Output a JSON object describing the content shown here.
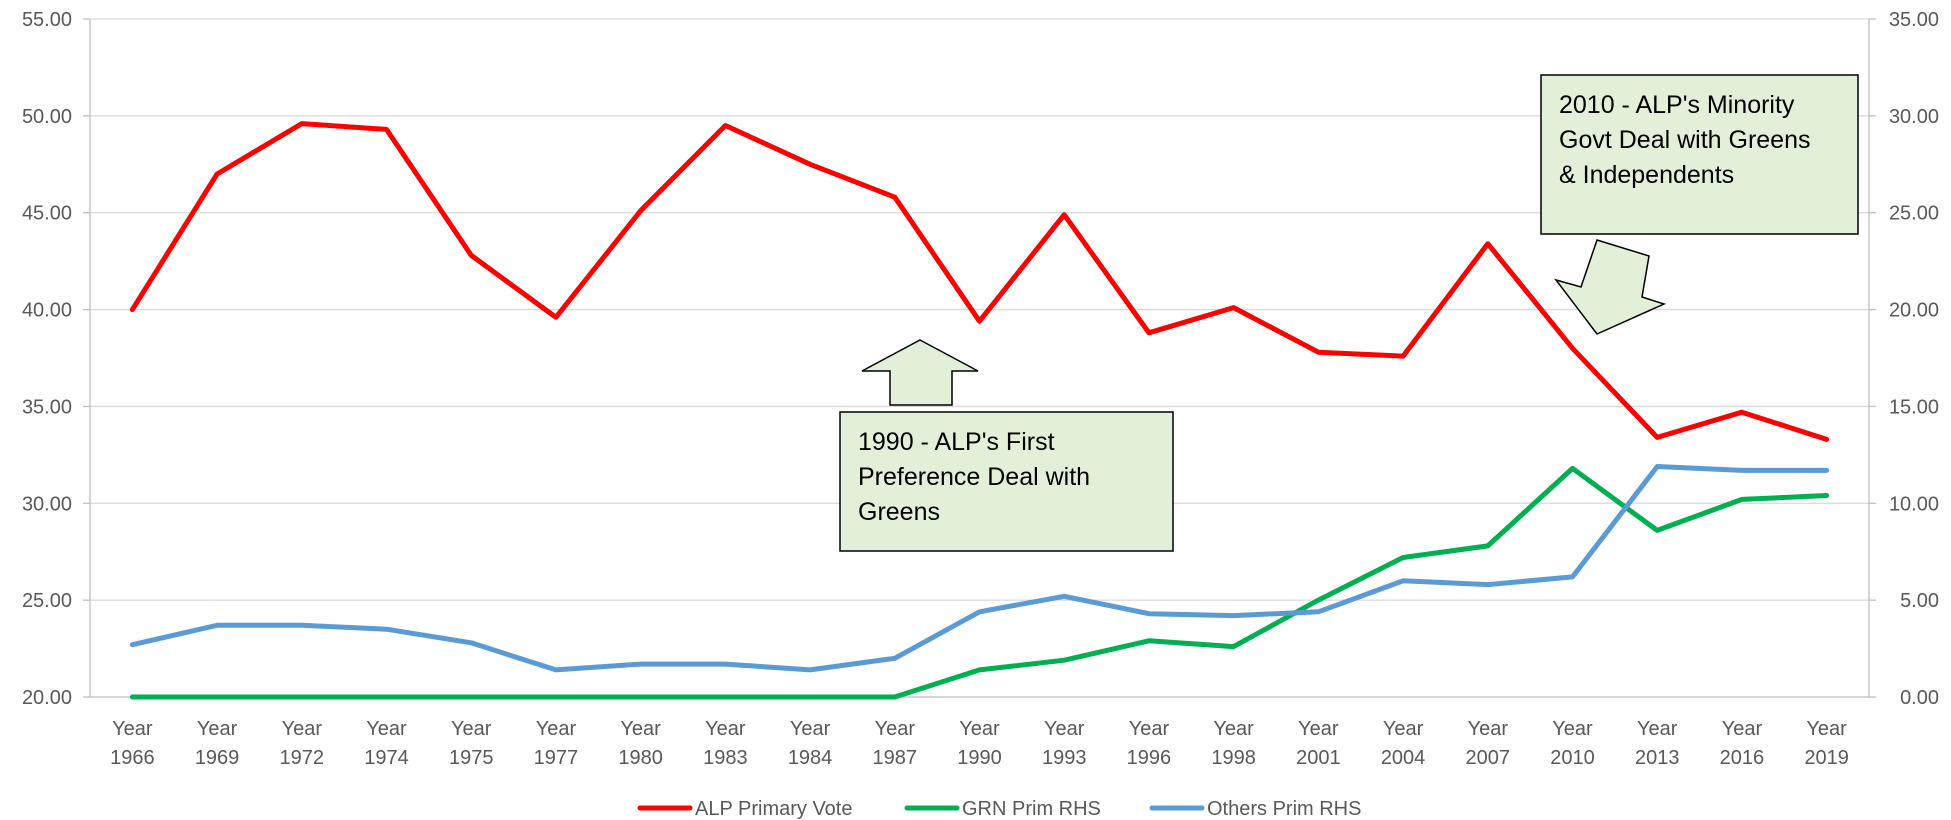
{
  "chart_data": {
    "type": "line",
    "categories": [
      [
        "Year",
        "1966"
      ],
      [
        "Year",
        "1969"
      ],
      [
        "Year",
        "1972"
      ],
      [
        "Year",
        "1974"
      ],
      [
        "Year",
        "1975"
      ],
      [
        "Year",
        "1977"
      ],
      [
        "Year",
        "1980"
      ],
      [
        "Year",
        "1983"
      ],
      [
        "Year",
        "1984"
      ],
      [
        "Year",
        "1987"
      ],
      [
        "Year",
        "1990"
      ],
      [
        "Year",
        "1993"
      ],
      [
        "Year",
        "1996"
      ],
      [
        "Year",
        "1998"
      ],
      [
        "Year",
        "2001"
      ],
      [
        "Year",
        "2004"
      ],
      [
        "Year",
        "2007"
      ],
      [
        "Year",
        "2010"
      ],
      [
        "Year",
        "2013"
      ],
      [
        "Year",
        "2016"
      ],
      [
        "Year",
        "2019"
      ]
    ],
    "y_left": {
      "ylim": [
        20,
        55
      ],
      "ticks": [
        "20.00",
        "25.00",
        "30.00",
        "35.00",
        "40.00",
        "45.00",
        "50.00",
        "55.00"
      ]
    },
    "y_right": {
      "ylim": [
        0,
        35
      ],
      "ticks": [
        "0.00",
        "5.00",
        "10.00",
        "15.00",
        "20.00",
        "25.00",
        "30.00",
        "35.00"
      ]
    },
    "grid": true,
    "legend_position": "bottom",
    "series": [
      {
        "name": "ALP Primary Vote",
        "axis": "left",
        "color": "#FF0000",
        "values": [
          40.0,
          47.0,
          49.6,
          49.3,
          42.8,
          39.6,
          45.1,
          49.5,
          47.5,
          45.8,
          39.4,
          44.9,
          38.8,
          40.1,
          37.8,
          37.6,
          43.4,
          38.0,
          33.4,
          34.7,
          33.3
        ]
      },
      {
        "name": "GRN Prim RHS",
        "axis": "right",
        "color": "#00B050",
        "values": [
          0.0,
          0.0,
          0.0,
          0.0,
          0.0,
          0.0,
          0.0,
          0.0,
          0.0,
          0.0,
          1.4,
          1.9,
          2.9,
          2.6,
          5.0,
          7.2,
          7.8,
          11.8,
          8.6,
          10.2,
          10.4
        ]
      },
      {
        "name": "Others Prim RHS",
        "axis": "right",
        "color": "#5B9BD5",
        "values": [
          2.7,
          3.7,
          3.7,
          3.5,
          2.8,
          1.4,
          1.7,
          1.7,
          1.4,
          2.0,
          4.4,
          5.2,
          4.3,
          4.2,
          4.4,
          6.0,
          5.8,
          6.2,
          11.9,
          11.7,
          11.7
        ]
      }
    ],
    "annotations": [
      {
        "lines": [
          "1990 - ALP's First",
          "Preference Deal with",
          "Greens"
        ],
        "fill": "#E2EFD9"
      },
      {
        "lines": [
          "2010 - ALP's Minority",
          "Govt Deal with Greens",
          "& Independents"
        ],
        "fill": "#E2EFD9"
      }
    ]
  }
}
